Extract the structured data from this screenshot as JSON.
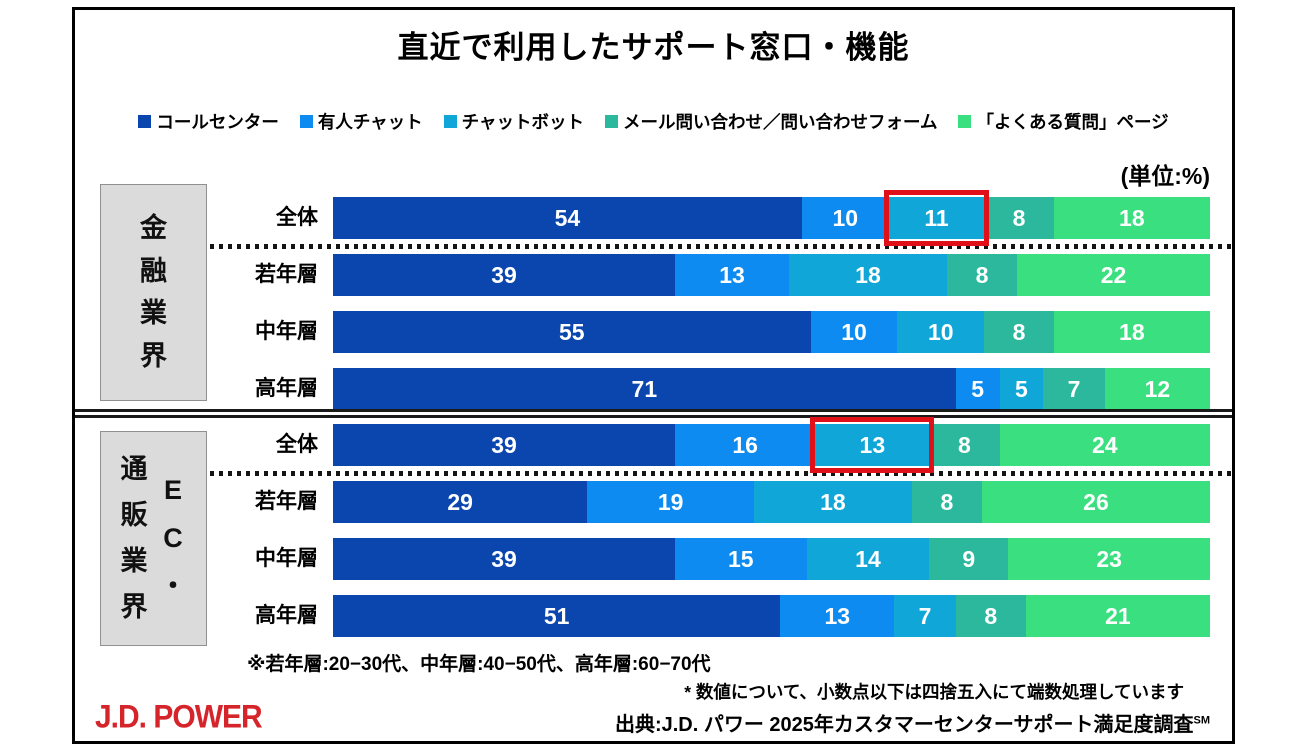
{
  "title": "直近で利用したサポート窓口・機能",
  "unit_label": "(単位:%)",
  "chart_data": {
    "type": "bar",
    "stacked": true,
    "orientation": "horizontal",
    "value_unit": "%",
    "series": [
      {
        "name": "コールセンター",
        "color": "#0b45ae"
      },
      {
        "name": "有人チャット",
        "color": "#0e8bf0"
      },
      {
        "name": "チャットボット",
        "color": "#10a6d8"
      },
      {
        "name": "メール問い合わせ／問い合わせフォーム",
        "color": "#2cb89d"
      },
      {
        "name": "「よくある質問」ページ",
        "color": "#3adf80"
      }
    ],
    "groups": [
      {
        "group_label": "金融業界",
        "label_columns": [
          "金融業界"
        ],
        "rows": [
          {
            "label": "全体",
            "values": [
              54,
              10,
              11,
              8,
              18
            ],
            "highlight_index": 2
          },
          {
            "label": "若年層",
            "values": [
              39,
              13,
              18,
              8,
              22
            ],
            "highlight_index": null
          },
          {
            "label": "中年層",
            "values": [
              55,
              10,
              10,
              8,
              18
            ],
            "highlight_index": null
          },
          {
            "label": "高年層",
            "values": [
              71,
              5,
              5,
              7,
              12
            ],
            "highlight_index": null
          }
        ]
      },
      {
        "group_label": "EC・通販業界",
        "label_columns": [
          "EC・",
          "通販業界"
        ],
        "rows": [
          {
            "label": "全体",
            "values": [
              39,
              16,
              13,
              8,
              24
            ],
            "highlight_index": 2
          },
          {
            "label": "若年層",
            "values": [
              29,
              19,
              18,
              8,
              26
            ],
            "highlight_index": null
          },
          {
            "label": "中年層",
            "values": [
              39,
              15,
              14,
              9,
              23
            ],
            "highlight_index": null
          },
          {
            "label": "高年層",
            "values": [
              51,
              13,
              7,
              8,
              21
            ],
            "highlight_index": null
          }
        ]
      }
    ]
  },
  "footnotes": {
    "age_note": "※若年層:20−30代、中年層:40−50代、高年層:60−70代",
    "rounding_note": "* 数値について、小数点以下は四捨五入にて端数処理しています",
    "source_main": "出典:J.D. パワー 2025年カスタマーセンターサポート満足度調査",
    "source_sup": "SM"
  },
  "logo_text": "J.D. POWER",
  "colors": {
    "highlight_box": "#e01019",
    "logo_red": "#d6242b",
    "group_box_bg": "#dbdbdb"
  }
}
